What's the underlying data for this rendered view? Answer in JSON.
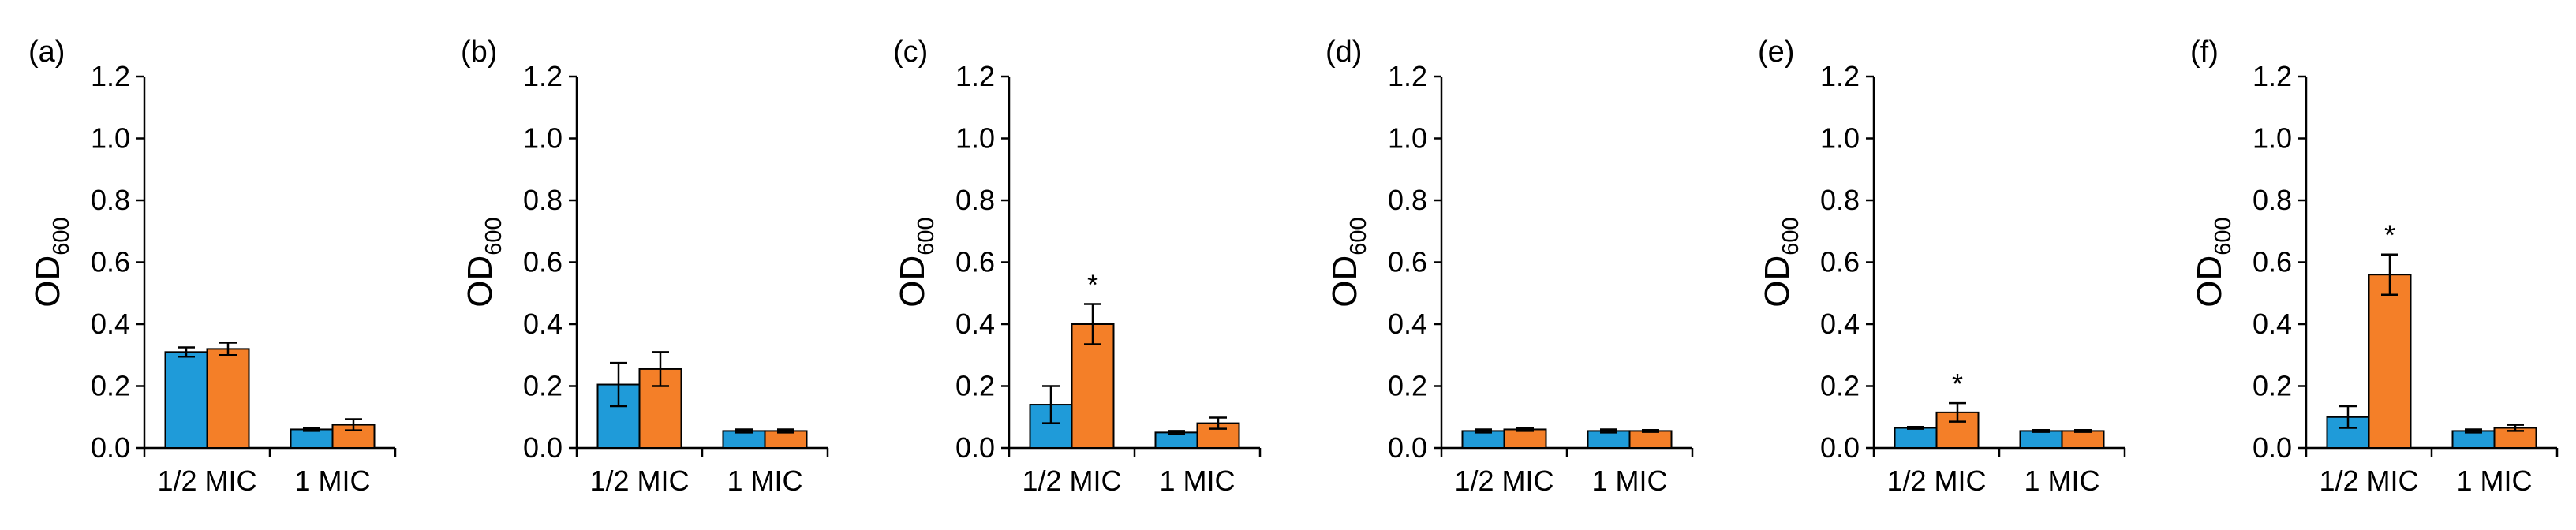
{
  "colors": {
    "series_1": "#1F9BD9",
    "series_2": "#F47F28",
    "axis": "#000000"
  },
  "chart_data": [
    {
      "type": "bar",
      "panel": "(a)",
      "ylabel": {
        "main": "OD",
        "sub": "600"
      },
      "ylim": [
        0,
        1.2
      ],
      "yticks": [
        "0.0",
        "0.2",
        "0.4",
        "0.6",
        "0.8",
        "1.0",
        "1.2"
      ],
      "categories": [
        "1/2 MIC",
        "1 MIC"
      ],
      "series": [
        {
          "name": "series 1",
          "values": [
            0.31,
            0.06
          ],
          "errors": [
            0.015,
            0.005
          ]
        },
        {
          "name": "series 2",
          "values": [
            0.32,
            0.075
          ],
          "errors": [
            0.02,
            0.018
          ]
        }
      ],
      "significance": []
    },
    {
      "type": "bar",
      "panel": "(b)",
      "ylabel": {
        "main": "OD",
        "sub": "600"
      },
      "ylim": [
        0,
        1.2
      ],
      "yticks": [
        "0.0",
        "0.2",
        "0.4",
        "0.6",
        "0.8",
        "1.0",
        "1.2"
      ],
      "categories": [
        "1/2 MIC",
        "1 MIC"
      ],
      "series": [
        {
          "name": "series 1",
          "values": [
            0.205,
            0.055
          ],
          "errors": [
            0.07,
            0.005
          ]
        },
        {
          "name": "series 2",
          "values": [
            0.255,
            0.055
          ],
          "errors": [
            0.055,
            0.005
          ]
        }
      ],
      "significance": []
    },
    {
      "type": "bar",
      "panel": "(c)",
      "ylabel": {
        "main": "OD",
        "sub": "600"
      },
      "ylim": [
        0,
        1.2
      ],
      "yticks": [
        "0.0",
        "0.2",
        "0.4",
        "0.6",
        "0.8",
        "1.0",
        "1.2"
      ],
      "categories": [
        "1/2 MIC",
        "1 MIC"
      ],
      "series": [
        {
          "name": "series 1",
          "values": [
            0.14,
            0.05
          ],
          "errors": [
            0.06,
            0.005
          ]
        },
        {
          "name": "series 2",
          "values": [
            0.4,
            0.08
          ],
          "errors": [
            0.065,
            0.018
          ]
        }
      ],
      "significance": [
        {
          "category": 0,
          "series": 1,
          "mark": "*"
        }
      ]
    },
    {
      "type": "bar",
      "panel": "(d)",
      "ylabel": {
        "main": "OD",
        "sub": "600"
      },
      "ylim": [
        0,
        1.2
      ],
      "yticks": [
        "0.0",
        "0.2",
        "0.4",
        "0.6",
        "0.8",
        "1.0",
        "1.2"
      ],
      "categories": [
        "1/2 MIC",
        "1 MIC"
      ],
      "series": [
        {
          "name": "series 1",
          "values": [
            0.055,
            0.055
          ],
          "errors": [
            0.005,
            0.005
          ]
        },
        {
          "name": "series 2",
          "values": [
            0.06,
            0.055
          ],
          "errors": [
            0.005,
            0.003
          ]
        }
      ],
      "significance": []
    },
    {
      "type": "bar",
      "panel": "(e)",
      "ylabel": {
        "main": "OD",
        "sub": "600"
      },
      "ylim": [
        0,
        1.2
      ],
      "yticks": [
        "0.0",
        "0.2",
        "0.4",
        "0.6",
        "0.8",
        "1.0",
        "1.2"
      ],
      "categories": [
        "1/2 MIC",
        "1 MIC"
      ],
      "series": [
        {
          "name": "series 1",
          "values": [
            0.065,
            0.055
          ],
          "errors": [
            0.003,
            0.003
          ]
        },
        {
          "name": "series 2",
          "values": [
            0.115,
            0.055
          ],
          "errors": [
            0.03,
            0.003
          ]
        }
      ],
      "significance": [
        {
          "category": 0,
          "series": 1,
          "mark": "*"
        }
      ]
    },
    {
      "type": "bar",
      "panel": "(f)",
      "ylabel": {
        "main": "OD",
        "sub": "600"
      },
      "ylim": [
        0,
        1.2
      ],
      "yticks": [
        "0.0",
        "0.2",
        "0.4",
        "0.6",
        "0.8",
        "1.0",
        "1.2"
      ],
      "categories": [
        "1/2 MIC",
        "1 MIC"
      ],
      "series": [
        {
          "name": "series 1",
          "values": [
            0.1,
            0.055
          ],
          "errors": [
            0.035,
            0.005
          ]
        },
        {
          "name": "series 2",
          "values": [
            0.56,
            0.065
          ],
          "errors": [
            0.065,
            0.01
          ]
        }
      ],
      "significance": [
        {
          "category": 0,
          "series": 1,
          "mark": "*"
        }
      ]
    }
  ]
}
